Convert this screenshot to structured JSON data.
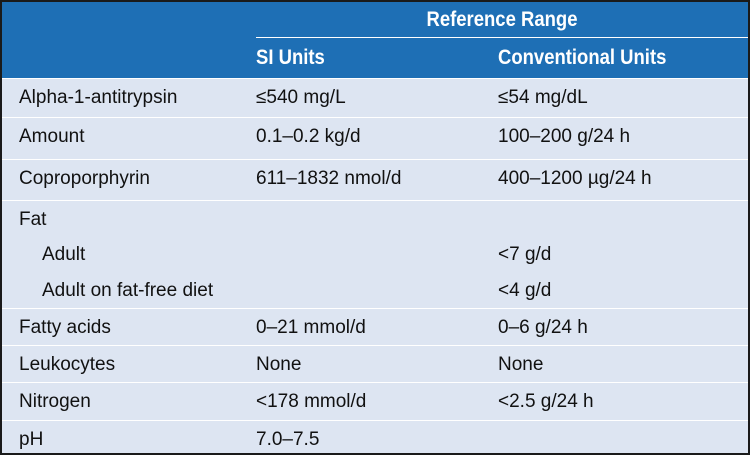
{
  "header": {
    "range_label": "Reference Range",
    "si_label": "SI Units",
    "conv_label": "Conventional Units"
  },
  "rows": [
    {
      "name": "Alpha-1-antitrypsin",
      "si": "≤540 mg/L",
      "conv": "≤54 mg/dL"
    },
    {
      "name": "Amount",
      "si": "0.1–0.2 kg/d",
      "conv": "100–200 g/24 h"
    },
    {
      "name": "Coproporphyrin",
      "si": "611–1832 nmol/d",
      "conv": "400–1200 µg/24 h"
    },
    {
      "name": "Fat",
      "si": "",
      "conv": ""
    },
    {
      "name": "Adult",
      "si": "",
      "conv": "<7 g/d"
    },
    {
      "name": "Adult on fat-free diet",
      "si": "",
      "conv": "<4 g/d"
    },
    {
      "name": "Fatty acids",
      "si": "0–21 mmol/d",
      "conv": "0–6 g/24 h"
    },
    {
      "name": "Leukocytes",
      "si": "None",
      "conv": "None"
    },
    {
      "name": "Nitrogen",
      "si": "<178 mmol/d",
      "conv": "<2.5 g/24 h"
    },
    {
      "name": "pH",
      "si": "7.0–7.5",
      "conv": ""
    }
  ]
}
